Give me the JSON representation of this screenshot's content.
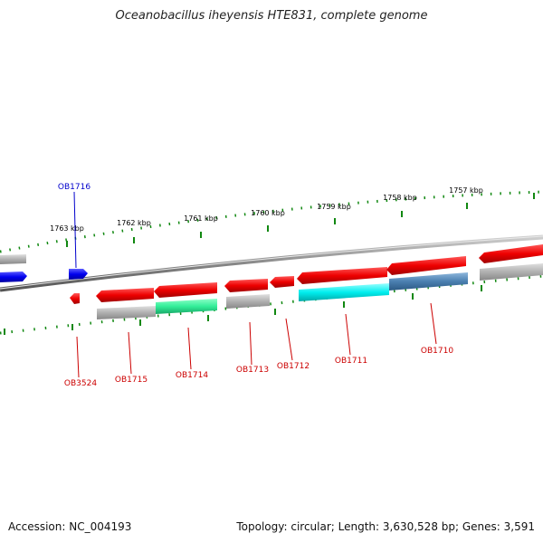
{
  "title": "Oceanobacillus iheyensis HTE831, complete genome",
  "footer": {
    "accession": "Accession: NC_004193",
    "topology": "Topology: circular; Length: 3,630,528 bp; Genes: 3,591"
  },
  "ticks": [
    {
      "label": "1763 kbp"
    },
    {
      "label": "1762 kbp"
    },
    {
      "label": "1761 kbp"
    },
    {
      "label": "1760 kbp"
    },
    {
      "label": "1759 kbp"
    },
    {
      "label": "1758 kbp"
    },
    {
      "label": "1757 kbp"
    }
  ],
  "gene_labels": [
    {
      "name": "OB1716",
      "color": "#0000cc"
    },
    {
      "name": "OB3524",
      "color": "#cc0000"
    },
    {
      "name": "OB1715",
      "color": "#cc0000"
    },
    {
      "name": "OB1714",
      "color": "#cc0000"
    },
    {
      "name": "OB1713",
      "color": "#cc0000"
    },
    {
      "name": "OB1712",
      "color": "#cc0000"
    },
    {
      "name": "OB1711",
      "color": "#cc0000"
    },
    {
      "name": "OB1710",
      "color": "#cc0000"
    }
  ],
  "colors": {
    "forward_gene": "#0000ee",
    "reverse_gene": "#ee0000",
    "backbone": "#888888",
    "tick_mark": "#118811",
    "cog_gray": "#aaaaaa",
    "cog_teal": "#33ee99",
    "cog_cyan": "#00eeee",
    "cog_steel": "#4a7fb0"
  }
}
